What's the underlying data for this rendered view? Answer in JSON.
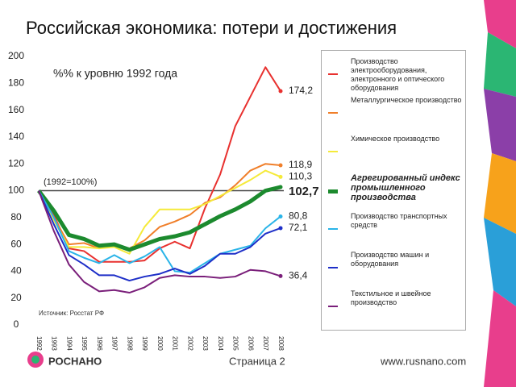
{
  "chart_data": {
    "type": "line",
    "title": "Российская экономика: потери и достижения",
    "annotations": {
      "unit": "%% к уровню 1992 года",
      "base": "(1992=100%)",
      "source": "Источник: Росстат РФ"
    },
    "categories": [
      "1992",
      "1993",
      "1994",
      "1995",
      "1996",
      "1997",
      "1998",
      "1999",
      "2000",
      "2001",
      "2002",
      "2003",
      "2004",
      "2005",
      "2006",
      "2007",
      "2008"
    ],
    "ylim": [
      0,
      200
    ],
    "yticks": [
      0,
      20,
      40,
      60,
      80,
      100,
      120,
      140,
      160,
      180,
      200
    ],
    "reference_line": 100,
    "series": [
      {
        "name": "Производство электрооборудования, электронного и оптического оборудования",
        "color": "#e8312f",
        "width": 2,
        "values": [
          100,
          82,
          57,
          55,
          47,
          47,
          47,
          48,
          57,
          62,
          57,
          87,
          112,
          148,
          170,
          192,
          174.2
        ],
        "value_labels": [
          null,
          null,
          null,
          null,
          null,
          null,
          null,
          null,
          null,
          null,
          null,
          null,
          null,
          null,
          null,
          null,
          "174,2"
        ]
      },
      {
        "name": "Металлургическое производство",
        "color": "#f07f2a",
        "width": 2,
        "values": [
          100,
          80,
          60,
          61,
          57,
          60,
          57,
          63,
          73,
          77,
          82,
          91,
          95,
          104,
          115,
          120,
          118.9
        ],
        "value_labels": [
          null,
          null,
          null,
          null,
          null,
          null,
          null,
          null,
          null,
          null,
          null,
          null,
          null,
          null,
          null,
          null,
          "118,9"
        ]
      },
      {
        "name": "Химическое производство",
        "color": "#f5ea3a",
        "width": 2,
        "values": [
          100,
          78,
          58,
          58,
          57,
          58,
          53,
          73,
          86,
          86,
          86,
          90,
          96,
          102,
          108,
          115,
          110.3
        ],
        "value_labels": [
          null,
          null,
          null,
          null,
          null,
          null,
          null,
          null,
          null,
          null,
          null,
          null,
          null,
          null,
          null,
          null,
          "110,3"
        ]
      },
      {
        "name": "Агрегированный индекс промышленного производства",
        "color": "#1c8a2e",
        "width": 5,
        "bold": true,
        "values": [
          100,
          85,
          67,
          64,
          59,
          60,
          56,
          60,
          64,
          66,
          69,
          75,
          81,
          86,
          92,
          100,
          102.7
        ],
        "value_labels": [
          null,
          null,
          null,
          null,
          null,
          null,
          null,
          null,
          null,
          null,
          null,
          null,
          null,
          null,
          null,
          null,
          "102,7"
        ]
      },
      {
        "name": "Производство транспортных средств",
        "color": "#2ab4e8",
        "width": 2,
        "values": [
          100,
          80,
          55,
          50,
          46,
          52,
          46,
          51,
          58,
          40,
          39,
          46,
          53,
          56,
          59,
          72,
          80.8
        ],
        "value_labels": [
          null,
          null,
          null,
          null,
          null,
          null,
          null,
          null,
          null,
          null,
          null,
          null,
          null,
          null,
          null,
          null,
          "80,8"
        ]
      },
      {
        "name": "Производство машин и оборудования",
        "color": "#1e2fc8",
        "width": 2,
        "values": [
          100,
          75,
          52,
          45,
          37,
          37,
          33,
          36,
          38,
          42,
          38,
          44,
          53,
          53,
          58,
          68,
          72.1
        ],
        "value_labels": [
          null,
          null,
          null,
          null,
          null,
          null,
          null,
          null,
          null,
          null,
          null,
          null,
          null,
          null,
          null,
          null,
          "72,1"
        ]
      },
      {
        "name": "Текстильное и швейное производство",
        "color": "#7a1f7a",
        "width": 2,
        "values": [
          100,
          70,
          45,
          32,
          25,
          26,
          24,
          28,
          35,
          37,
          36,
          36,
          35,
          36,
          41,
          40,
          36.4
        ],
        "value_labels": [
          null,
          null,
          null,
          null,
          null,
          null,
          null,
          null,
          null,
          null,
          null,
          null,
          null,
          null,
          null,
          null,
          "36,4"
        ]
      }
    ]
  },
  "footer": {
    "page": "Страница 2",
    "url": "www.rusnano.com",
    "logo": "РОСНАНО"
  }
}
